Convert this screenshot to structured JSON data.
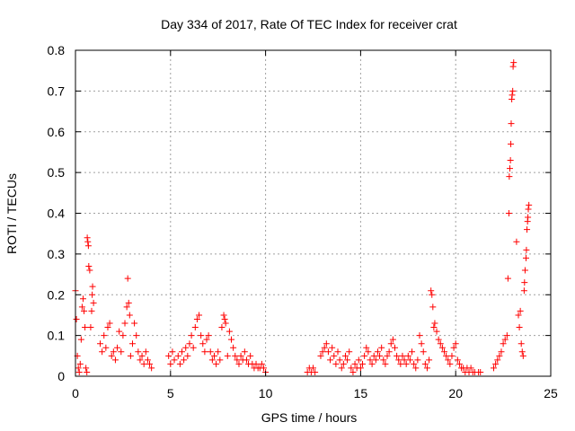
{
  "chart_data": {
    "type": "scatter",
    "title": "Day 334 of 2017, Rate Of TEC Index for receiver crat",
    "xlabel": "GPS time / hours",
    "ylabel": "ROTI / TECUs",
    "xlim": [
      0,
      25
    ],
    "ylim": [
      0,
      0.8
    ],
    "xticks": [
      "0",
      "5",
      "10",
      "15",
      "20",
      "25"
    ],
    "yticks": [
      "0",
      "0.1",
      "0.2",
      "0.3",
      "0.4",
      "0.5",
      "0.6",
      "0.7",
      "0.8"
    ],
    "grid": true,
    "marker": "plus",
    "color": "#ff0000",
    "series": [
      {
        "points": [
          [
            0.0,
            0.21
          ],
          [
            0.05,
            0.14
          ],
          [
            0.1,
            0.05
          ],
          [
            0.15,
            0.02
          ],
          [
            0.2,
            0.01
          ],
          [
            0.25,
            0.03
          ],
          [
            0.3,
            0.09
          ],
          [
            0.35,
            0.17
          ],
          [
            0.4,
            0.19
          ],
          [
            0.45,
            0.16
          ],
          [
            0.5,
            0.12
          ],
          [
            0.55,
            0.02
          ],
          [
            0.6,
            0.01
          ],
          [
            0.62,
            0.34
          ],
          [
            0.65,
            0.33
          ],
          [
            0.68,
            0.32
          ],
          [
            0.7,
            0.27
          ],
          [
            0.75,
            0.26
          ],
          [
            0.8,
            0.12
          ],
          [
            0.85,
            0.16
          ],
          [
            0.88,
            0.2
          ],
          [
            0.9,
            0.22
          ],
          [
            0.95,
            0.18
          ],
          [
            1.3,
            0.08
          ],
          [
            1.4,
            0.06
          ],
          [
            1.5,
            0.1
          ],
          [
            1.6,
            0.07
          ],
          [
            1.7,
            0.12
          ],
          [
            1.8,
            0.13
          ],
          [
            1.9,
            0.05
          ],
          [
            2.0,
            0.06
          ],
          [
            2.1,
            0.04
          ],
          [
            2.2,
            0.07
          ],
          [
            2.3,
            0.11
          ],
          [
            2.4,
            0.06
          ],
          [
            2.5,
            0.1
          ],
          [
            2.6,
            0.13
          ],
          [
            2.7,
            0.17
          ],
          [
            2.75,
            0.24
          ],
          [
            2.8,
            0.18
          ],
          [
            2.85,
            0.15
          ],
          [
            2.9,
            0.05
          ],
          [
            3.0,
            0.08
          ],
          [
            3.1,
            0.13
          ],
          [
            3.2,
            0.1
          ],
          [
            3.3,
            0.06
          ],
          [
            3.4,
            0.04
          ],
          [
            3.5,
            0.05
          ],
          [
            3.6,
            0.03
          ],
          [
            3.7,
            0.06
          ],
          [
            3.8,
            0.04
          ],
          [
            3.9,
            0.03
          ],
          [
            4.0,
            0.02
          ],
          [
            4.9,
            0.05
          ],
          [
            5.0,
            0.03
          ],
          [
            5.1,
            0.06
          ],
          [
            5.2,
            0.04
          ],
          [
            5.4,
            0.05
          ],
          [
            5.5,
            0.03
          ],
          [
            5.6,
            0.06
          ],
          [
            5.7,
            0.04
          ],
          [
            5.8,
            0.07
          ],
          [
            5.9,
            0.05
          ],
          [
            6.0,
            0.08
          ],
          [
            6.1,
            0.1
          ],
          [
            6.2,
            0.07
          ],
          [
            6.3,
            0.12
          ],
          [
            6.4,
            0.14
          ],
          [
            6.5,
            0.15
          ],
          [
            6.6,
            0.1
          ],
          [
            6.7,
            0.08
          ],
          [
            6.8,
            0.06
          ],
          [
            6.9,
            0.09
          ],
          [
            7.0,
            0.1
          ],
          [
            7.1,
            0.06
          ],
          [
            7.2,
            0.04
          ],
          [
            7.3,
            0.05
          ],
          [
            7.4,
            0.03
          ],
          [
            7.5,
            0.06
          ],
          [
            7.6,
            0.04
          ],
          [
            7.7,
            0.12
          ],
          [
            7.8,
            0.15
          ],
          [
            7.85,
            0.14
          ],
          [
            7.9,
            0.13
          ],
          [
            8.0,
            0.05
          ],
          [
            8.1,
            0.11
          ],
          [
            8.2,
            0.09
          ],
          [
            8.3,
            0.07
          ],
          [
            8.4,
            0.05
          ],
          [
            8.5,
            0.04
          ],
          [
            8.6,
            0.03
          ],
          [
            8.7,
            0.05
          ],
          [
            8.8,
            0.04
          ],
          [
            8.9,
            0.06
          ],
          [
            9.0,
            0.04
          ],
          [
            9.1,
            0.03
          ],
          [
            9.2,
            0.05
          ],
          [
            9.3,
            0.03
          ],
          [
            9.4,
            0.02
          ],
          [
            9.5,
            0.03
          ],
          [
            9.6,
            0.02
          ],
          [
            9.7,
            0.02
          ],
          [
            9.8,
            0.03
          ],
          [
            9.9,
            0.02
          ],
          [
            10.0,
            0.01
          ],
          [
            12.2,
            0.01
          ],
          [
            12.3,
            0.02
          ],
          [
            12.4,
            0.01
          ],
          [
            12.5,
            0.02
          ],
          [
            12.6,
            0.01
          ],
          [
            12.9,
            0.05
          ],
          [
            13.0,
            0.06
          ],
          [
            13.1,
            0.07
          ],
          [
            13.2,
            0.08
          ],
          [
            13.3,
            0.06
          ],
          [
            13.4,
            0.04
          ],
          [
            13.5,
            0.07
          ],
          [
            13.6,
            0.05
          ],
          [
            13.7,
            0.03
          ],
          [
            13.8,
            0.06
          ],
          [
            13.9,
            0.04
          ],
          [
            14.0,
            0.02
          ],
          [
            14.1,
            0.03
          ],
          [
            14.2,
            0.05
          ],
          [
            14.3,
            0.04
          ],
          [
            14.4,
            0.06
          ],
          [
            14.5,
            0.02
          ],
          [
            14.6,
            0.01
          ],
          [
            14.7,
            0.03
          ],
          [
            14.8,
            0.02
          ],
          [
            14.9,
            0.04
          ],
          [
            15.0,
            0.02
          ],
          [
            15.1,
            0.03
          ],
          [
            15.2,
            0.05
          ],
          [
            15.3,
            0.07
          ],
          [
            15.4,
            0.06
          ],
          [
            15.5,
            0.04
          ],
          [
            15.6,
            0.03
          ],
          [
            15.7,
            0.05
          ],
          [
            15.8,
            0.04
          ],
          [
            15.9,
            0.06
          ],
          [
            16.0,
            0.05
          ],
          [
            16.1,
            0.07
          ],
          [
            16.2,
            0.04
          ],
          [
            16.3,
            0.03
          ],
          [
            16.4,
            0.05
          ],
          [
            16.5,
            0.06
          ],
          [
            16.6,
            0.08
          ],
          [
            16.7,
            0.09
          ],
          [
            16.8,
            0.07
          ],
          [
            16.9,
            0.05
          ],
          [
            17.0,
            0.04
          ],
          [
            17.1,
            0.03
          ],
          [
            17.2,
            0.05
          ],
          [
            17.3,
            0.04
          ],
          [
            17.4,
            0.03
          ],
          [
            17.5,
            0.05
          ],
          [
            17.6,
            0.04
          ],
          [
            17.7,
            0.06
          ],
          [
            17.8,
            0.03
          ],
          [
            17.9,
            0.02
          ],
          [
            18.0,
            0.04
          ],
          [
            18.1,
            0.1
          ],
          [
            18.2,
            0.08
          ],
          [
            18.3,
            0.06
          ],
          [
            18.4,
            0.03
          ],
          [
            18.5,
            0.02
          ],
          [
            18.6,
            0.04
          ],
          [
            18.7,
            0.21
          ],
          [
            18.75,
            0.2
          ],
          [
            18.8,
            0.17
          ],
          [
            18.85,
            0.12
          ],
          [
            18.9,
            0.13
          ],
          [
            19.0,
            0.11
          ],
          [
            19.1,
            0.09
          ],
          [
            19.2,
            0.08
          ],
          [
            19.3,
            0.07
          ],
          [
            19.4,
            0.06
          ],
          [
            19.5,
            0.05
          ],
          [
            19.6,
            0.04
          ],
          [
            19.7,
            0.03
          ],
          [
            19.8,
            0.05
          ],
          [
            19.9,
            0.07
          ],
          [
            20.0,
            0.08
          ],
          [
            20.1,
            0.04
          ],
          [
            20.2,
            0.03
          ],
          [
            20.3,
            0.02
          ],
          [
            20.4,
            0.02
          ],
          [
            20.5,
            0.01
          ],
          [
            20.6,
            0.02
          ],
          [
            20.7,
            0.01
          ],
          [
            20.8,
            0.02
          ],
          [
            20.9,
            0.01
          ],
          [
            21.0,
            0.01
          ],
          [
            21.2,
            0.01
          ],
          [
            21.3,
            0.01
          ],
          [
            22.0,
            0.02
          ],
          [
            22.1,
            0.03
          ],
          [
            22.2,
            0.04
          ],
          [
            22.3,
            0.05
          ],
          [
            22.4,
            0.06
          ],
          [
            22.5,
            0.08
          ],
          [
            22.6,
            0.09
          ],
          [
            22.7,
            0.1
          ],
          [
            22.75,
            0.24
          ],
          [
            22.8,
            0.4
          ],
          [
            22.82,
            0.49
          ],
          [
            22.85,
            0.51
          ],
          [
            22.88,
            0.53
          ],
          [
            22.9,
            0.57
          ],
          [
            22.92,
            0.62
          ],
          [
            22.95,
            0.68
          ],
          [
            22.97,
            0.69
          ],
          [
            23.0,
            0.7
          ],
          [
            23.02,
            0.76
          ],
          [
            23.05,
            0.77
          ],
          [
            23.2,
            0.33
          ],
          [
            23.3,
            0.15
          ],
          [
            23.35,
            0.12
          ],
          [
            23.4,
            0.16
          ],
          [
            23.45,
            0.08
          ],
          [
            23.5,
            0.06
          ],
          [
            23.55,
            0.05
          ],
          [
            23.6,
            0.21
          ],
          [
            23.62,
            0.23
          ],
          [
            23.65,
            0.26
          ],
          [
            23.7,
            0.29
          ],
          [
            23.72,
            0.31
          ],
          [
            23.75,
            0.36
          ],
          [
            23.78,
            0.38
          ],
          [
            23.8,
            0.39
          ],
          [
            23.82,
            0.41
          ],
          [
            23.85,
            0.42
          ]
        ]
      }
    ]
  }
}
